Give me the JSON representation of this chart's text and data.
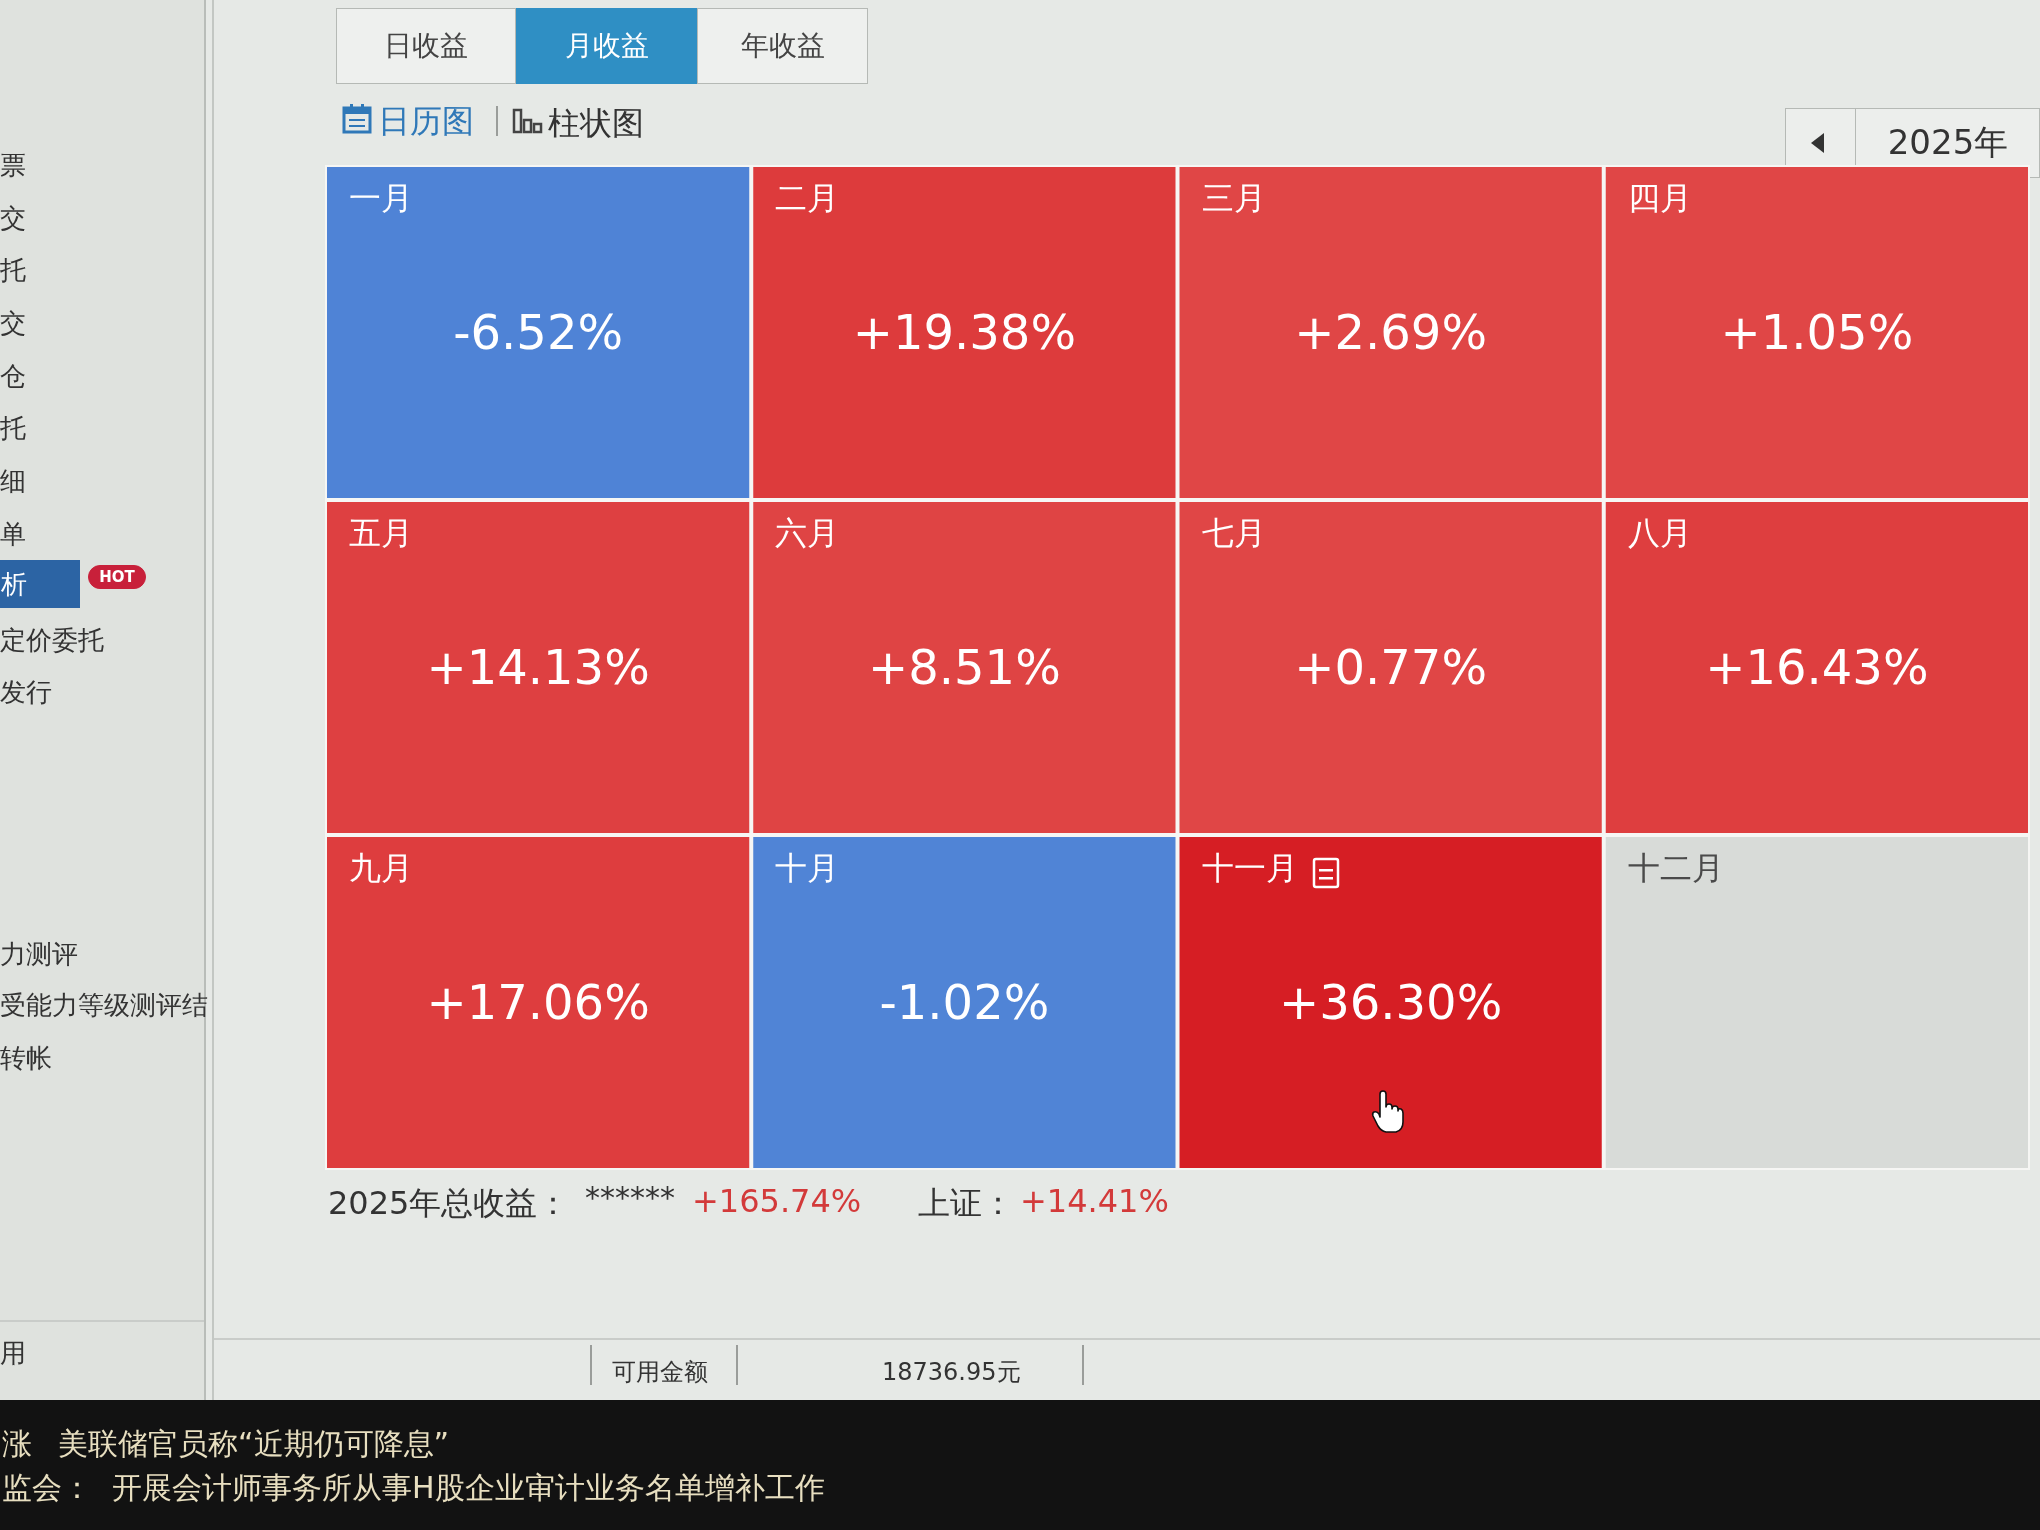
{
  "chart_data": {
    "type": "other",
    "categories": [
      "一月",
      "二月",
      "三月",
      "四月",
      "五月",
      "六月",
      "七月",
      "八月",
      "九月",
      "十月",
      "十一月",
      "十二月"
    ],
    "values": [
      -6.52,
      19.38,
      2.69,
      1.05,
      14.13,
      8.51,
      0.77,
      16.43,
      17.06,
      -1.02,
      36.3,
      null
    ],
    "value_labels": [
      "-6.52%",
      "+19.38%",
      "+2.69%",
      "+1.05%",
      "+14.13%",
      "+8.51%",
      "+0.77%",
      "+16.43%",
      "+17.06%",
      "-1.02%",
      "+36.30%",
      null
    ],
    "annotations": [
      "日收益",
      "月收益",
      "年收益",
      "日历图",
      "柱状图",
      "2025年",
      "2025年总收益：",
      "******",
      "+165.74%",
      "上证：",
      "+14.41%",
      "可用金额",
      "18736.95元",
      "涨",
      "美联储官员称“近期仍可降息”",
      "监会：",
      "开展会计师事务所从事H股企业审计业务名单增补工作",
      "票",
      "交",
      "托",
      "交",
      "仓",
      "托",
      "细",
      "单",
      "析",
      "HOT",
      "定价委托",
      "发行",
      "力测评",
      "受能力等级测评结",
      "转帐",
      "用"
    ]
  }
}
